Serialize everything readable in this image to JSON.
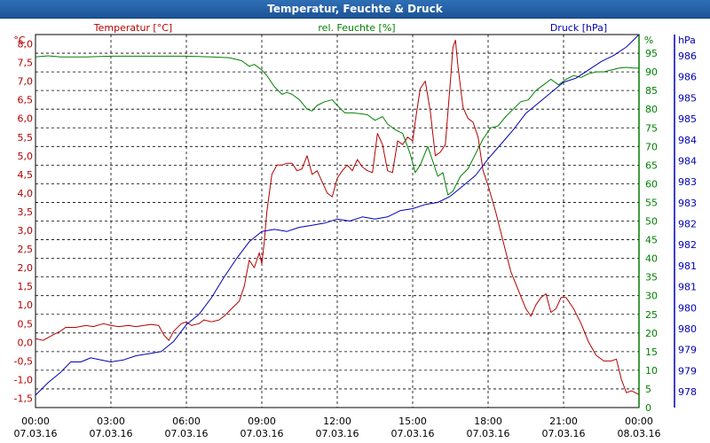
{
  "window": {
    "title": "Temperatur, Feuchte & Druck"
  },
  "colors": {
    "temperature": "#b40000",
    "humidity": "#008000",
    "pressure": "#0000b4",
    "grid": "#000000"
  },
  "chart_data": {
    "type": "line",
    "title": "Temperatur, Feuchte & Druck",
    "xlabel": "",
    "x_ticks": [
      {
        "hour": 0,
        "time": "00:00",
        "date": "07.03.16"
      },
      {
        "hour": 3,
        "time": "03:00",
        "date": "07.03.16"
      },
      {
        "hour": 6,
        "time": "06:00",
        "date": "07.03.16"
      },
      {
        "hour": 9,
        "time": "09:00",
        "date": "07.03.16"
      },
      {
        "hour": 12,
        "time": "12:00",
        "date": "07.03.16"
      },
      {
        "hour": 15,
        "time": "15:00",
        "date": "07.03.16"
      },
      {
        "hour": 18,
        "time": "18:00",
        "date": "07.03.16"
      },
      {
        "hour": 21,
        "time": "21:00",
        "date": "07.03.16"
      },
      {
        "hour": 24,
        "time": "00:00",
        "date": "08.03.16"
      }
    ],
    "xlim": [
      0,
      24
    ],
    "grid": true,
    "axes": {
      "temperature": {
        "unit": "°C",
        "label": "Temperatur [°C]",
        "ylim": [
          -1.75,
          8.25
        ],
        "ticks": [
          "8,0",
          "7,5",
          "7,0",
          "6,5",
          "6,0",
          "5,5",
          "5,0",
          "4,5",
          "4,0",
          "3,5",
          "3,0",
          "2,5",
          "2,0",
          "1,5",
          "1,0",
          "0,5",
          "0,0",
          "-0,5",
          "-1,0",
          "-1,5"
        ]
      },
      "humidity": {
        "unit": "%",
        "label": "rel. Feuchte [%]",
        "ylim": [
          0,
          100
        ],
        "ticks": [
          "95",
          "90",
          "85",
          "80",
          "75",
          "70",
          "65",
          "60",
          "55",
          "50",
          "45",
          "40",
          "35",
          "30",
          "25",
          "20",
          "15",
          "10",
          "5",
          "0"
        ]
      },
      "pressure": {
        "unit": "hPa",
        "label": "Druck [hPa]",
        "ylim": [
          977.6,
          986.6
        ],
        "ticks": [
          "986",
          "986",
          "985",
          "985",
          "984",
          "984",
          "983",
          "983",
          "982",
          "982",
          "981",
          "981",
          "980",
          "980",
          "979",
          "979",
          "978"
        ]
      }
    },
    "series": [
      {
        "name": "Temperatur [°C]",
        "axis": "temperature",
        "color": "#b40000",
        "points": [
          [
            0,
            0.1
          ],
          [
            0.3,
            0.05
          ],
          [
            0.7,
            0.2
          ],
          [
            1,
            0.3
          ],
          [
            1.2,
            0.4
          ],
          [
            1.6,
            0.4
          ],
          [
            2,
            0.45
          ],
          [
            2.3,
            0.42
          ],
          [
            2.7,
            0.5
          ],
          [
            3,
            0.45
          ],
          [
            3.3,
            0.42
          ],
          [
            3.7,
            0.45
          ],
          [
            4,
            0.42
          ],
          [
            4.3,
            0.45
          ],
          [
            4.6,
            0.48
          ],
          [
            4.9,
            0.45
          ],
          [
            5.1,
            0.2
          ],
          [
            5.3,
            0.05
          ],
          [
            5.5,
            0.3
          ],
          [
            5.8,
            0.5
          ],
          [
            6,
            0.55
          ],
          [
            6.2,
            0.45
          ],
          [
            6.5,
            0.5
          ],
          [
            6.7,
            0.6
          ],
          [
            7,
            0.55
          ],
          [
            7.3,
            0.6
          ],
          [
            7.5,
            0.7
          ],
          [
            7.8,
            0.9
          ],
          [
            8.1,
            1.1
          ],
          [
            8.3,
            1.5
          ],
          [
            8.5,
            2.2
          ],
          [
            8.7,
            2.0
          ],
          [
            8.9,
            2.4
          ],
          [
            9.0,
            2.1
          ],
          [
            9.1,
            2.7
          ],
          [
            9.2,
            3.5
          ],
          [
            9.4,
            4.5
          ],
          [
            9.6,
            4.75
          ],
          [
            9.8,
            4.75
          ],
          [
            10,
            4.8
          ],
          [
            10.2,
            4.8
          ],
          [
            10.4,
            4.6
          ],
          [
            10.6,
            4.65
          ],
          [
            10.8,
            5.0
          ],
          [
            11.0,
            4.5
          ],
          [
            11.2,
            4.6
          ],
          [
            11.4,
            4.3
          ],
          [
            11.6,
            4.0
          ],
          [
            11.8,
            3.9
          ],
          [
            12,
            4.4
          ],
          [
            12.2,
            4.6
          ],
          [
            12.4,
            4.75
          ],
          [
            12.6,
            4.6
          ],
          [
            12.8,
            4.9
          ],
          [
            13,
            4.7
          ],
          [
            13.2,
            4.6
          ],
          [
            13.4,
            4.55
          ],
          [
            13.6,
            5.6
          ],
          [
            13.8,
            5.3
          ],
          [
            14,
            4.6
          ],
          [
            14.2,
            4.55
          ],
          [
            14.4,
            5.4
          ],
          [
            14.6,
            5.3
          ],
          [
            14.8,
            5.5
          ],
          [
            15,
            5.4
          ],
          [
            15.1,
            5.9
          ],
          [
            15.3,
            6.8
          ],
          [
            15.5,
            7.0
          ],
          [
            15.7,
            6.2
          ],
          [
            15.9,
            5.0
          ],
          [
            16.1,
            5.1
          ],
          [
            16.3,
            5.3
          ],
          [
            16.5,
            7.0
          ],
          [
            16.6,
            7.9
          ],
          [
            16.7,
            8.1
          ],
          [
            16.8,
            7.4
          ],
          [
            17.0,
            6.3
          ],
          [
            17.2,
            6.0
          ],
          [
            17.4,
            5.9
          ],
          [
            17.6,
            5.5
          ],
          [
            17.8,
            4.6
          ],
          [
            18,
            4.2
          ],
          [
            18.3,
            3.5
          ],
          [
            18.6,
            2.7
          ],
          [
            18.9,
            1.9
          ],
          [
            19.2,
            1.4
          ],
          [
            19.5,
            0.9
          ],
          [
            19.7,
            0.7
          ],
          [
            19.9,
            1.0
          ],
          [
            20.1,
            1.2
          ],
          [
            20.3,
            1.3
          ],
          [
            20.5,
            0.8
          ],
          [
            20.7,
            0.9
          ],
          [
            20.9,
            1.2
          ],
          [
            21.1,
            1.2
          ],
          [
            21.4,
            0.9
          ],
          [
            21.7,
            0.5
          ],
          [
            22,
            0.0
          ],
          [
            22.3,
            -0.35
          ],
          [
            22.6,
            -0.5
          ],
          [
            22.9,
            -0.5
          ],
          [
            23.1,
            -0.45
          ],
          [
            23.3,
            -1.0
          ],
          [
            23.5,
            -1.35
          ],
          [
            23.7,
            -1.3
          ],
          [
            24,
            -1.4
          ]
        ]
      },
      {
        "name": "rel. Feuchte [%]",
        "axis": "humidity",
        "color": "#008000",
        "points": [
          [
            0,
            94
          ],
          [
            0.5,
            94.3
          ],
          [
            1,
            94
          ],
          [
            2,
            94
          ],
          [
            3,
            94.2
          ],
          [
            4,
            94.2
          ],
          [
            5,
            94.2
          ],
          [
            6,
            94.2
          ],
          [
            7,
            94
          ],
          [
            7.7,
            93.8
          ],
          [
            8.2,
            93
          ],
          [
            8.5,
            91.5
          ],
          [
            8.7,
            92
          ],
          [
            9,
            90.5
          ],
          [
            9.2,
            89
          ],
          [
            9.5,
            86
          ],
          [
            9.8,
            84
          ],
          [
            10,
            84.5
          ],
          [
            10.2,
            84
          ],
          [
            10.5,
            82.5
          ],
          [
            10.8,
            80
          ],
          [
            11,
            79.5
          ],
          [
            11.2,
            81
          ],
          [
            11.5,
            82
          ],
          [
            11.8,
            82.5
          ],
          [
            12,
            81
          ],
          [
            12.3,
            79
          ],
          [
            12.6,
            79
          ],
          [
            12.9,
            78.8
          ],
          [
            13.2,
            78.5
          ],
          [
            13.5,
            77
          ],
          [
            13.8,
            78
          ],
          [
            14,
            76
          ],
          [
            14.3,
            74.5
          ],
          [
            14.6,
            73.5
          ],
          [
            14.9,
            68
          ],
          [
            15.1,
            63
          ],
          [
            15.3,
            65
          ],
          [
            15.6,
            70
          ],
          [
            15.8,
            66
          ],
          [
            16.0,
            62
          ],
          [
            16.2,
            63
          ],
          [
            16.4,
            57
          ],
          [
            16.6,
            58
          ],
          [
            16.9,
            62
          ],
          [
            17.2,
            64
          ],
          [
            17.5,
            68
          ],
          [
            17.8,
            72
          ],
          [
            18.1,
            75
          ],
          [
            18.4,
            75.5
          ],
          [
            18.7,
            78
          ],
          [
            19,
            80
          ],
          [
            19.3,
            82
          ],
          [
            19.6,
            82.5
          ],
          [
            19.9,
            85
          ],
          [
            20.2,
            86.5
          ],
          [
            20.5,
            88
          ],
          [
            20.8,
            86.5
          ],
          [
            21.1,
            88
          ],
          [
            21.4,
            89
          ],
          [
            21.7,
            88.5
          ],
          [
            22,
            89.5
          ],
          [
            22.3,
            90
          ],
          [
            22.6,
            90
          ],
          [
            22.9,
            90.5
          ],
          [
            23.2,
            91
          ],
          [
            23.5,
            91.2
          ],
          [
            23.8,
            91
          ],
          [
            24,
            91
          ]
        ]
      },
      {
        "name": "Druck [hPa]",
        "axis": "pressure",
        "color": "#0000b4",
        "points": [
          [
            0,
            977.9
          ],
          [
            0.5,
            978.2
          ],
          [
            1,
            978.45
          ],
          [
            1.4,
            978.7
          ],
          [
            1.8,
            978.7
          ],
          [
            2.2,
            978.8
          ],
          [
            2.6,
            978.75
          ],
          [
            3,
            978.7
          ],
          [
            3.5,
            978.75
          ],
          [
            4,
            978.85
          ],
          [
            4.5,
            978.9
          ],
          [
            5,
            978.95
          ],
          [
            5.5,
            979.2
          ],
          [
            6,
            979.6
          ],
          [
            6.5,
            979.85
          ],
          [
            7,
            980.25
          ],
          [
            7.5,
            980.75
          ],
          [
            8,
            981.2
          ],
          [
            8.5,
            981.6
          ],
          [
            9,
            981.85
          ],
          [
            9.5,
            981.9
          ],
          [
            10,
            981.85
          ],
          [
            10.5,
            981.95
          ],
          [
            11,
            982.0
          ],
          [
            11.5,
            982.05
          ],
          [
            12,
            982.15
          ],
          [
            12.5,
            982.1
          ],
          [
            13,
            982.2
          ],
          [
            13.5,
            982.15
          ],
          [
            14,
            982.2
          ],
          [
            14.5,
            982.35
          ],
          [
            15,
            982.4
          ],
          [
            15.5,
            982.5
          ],
          [
            16,
            982.55
          ],
          [
            16.5,
            982.7
          ],
          [
            17,
            982.95
          ],
          [
            17.5,
            983.2
          ],
          [
            18,
            983.6
          ],
          [
            18.5,
            983.95
          ],
          [
            19,
            984.3
          ],
          [
            19.5,
            984.7
          ],
          [
            20,
            984.95
          ],
          [
            20.5,
            985.2
          ],
          [
            21,
            985.45
          ],
          [
            21.5,
            985.55
          ],
          [
            22,
            985.75
          ],
          [
            22.5,
            985.95
          ],
          [
            23,
            986.1
          ],
          [
            23.5,
            986.3
          ],
          [
            24,
            986.6
          ]
        ]
      }
    ]
  }
}
